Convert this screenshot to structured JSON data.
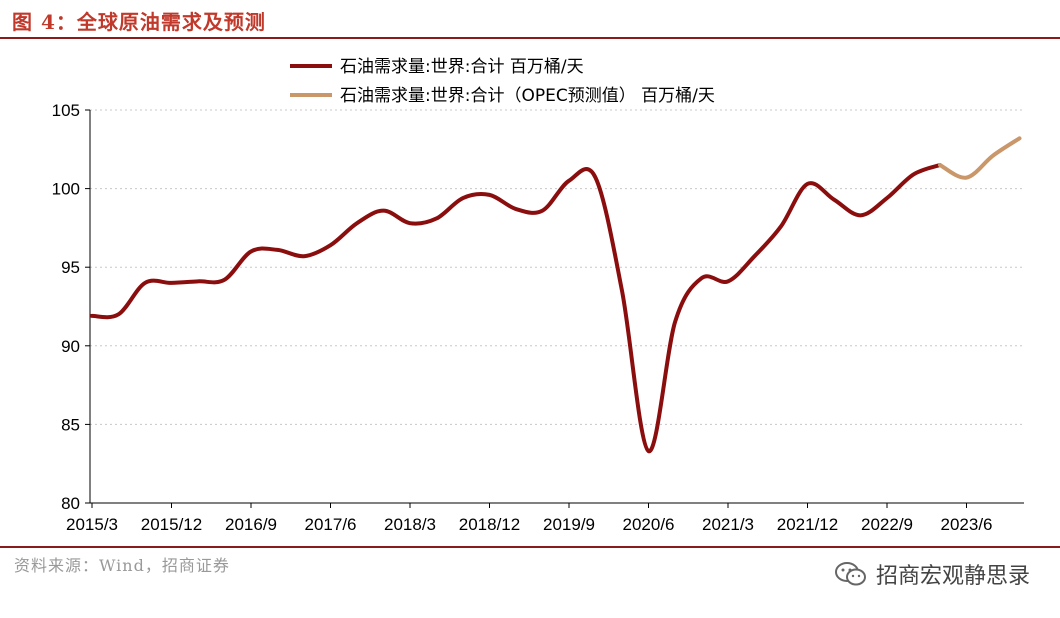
{
  "figure": {
    "title": "图 4：全球原油需求及预测",
    "source": "资料来源：Wind，招商证券",
    "watermark": "招商宏观静思录"
  },
  "colors": {
    "title": "#c0392b",
    "rule": "#8b1a1a",
    "actual_series": "#8b0e0e",
    "forecast_series": "#c9976a",
    "grid": "#c8c8c8"
  },
  "chart_data": {
    "type": "line",
    "title": "",
    "xlabel": "",
    "ylabel": "",
    "ylim": [
      80,
      105
    ],
    "yticks": [
      80,
      85,
      90,
      95,
      100,
      105
    ],
    "xticks": [
      "2015/3",
      "2015/12",
      "2016/9",
      "2017/6",
      "2018/3",
      "2018/12",
      "2019/9",
      "2020/6",
      "2021/3",
      "2021/12",
      "2022/9",
      "2023/6"
    ],
    "grid": "horizontal dotted",
    "legend": "top",
    "series": [
      {
        "name": "石油需求量:世界:合计 百万桶/天",
        "x": [
          "2015/3",
          "2015/6",
          "2015/9",
          "2015/12",
          "2016/3",
          "2016/6",
          "2016/9",
          "2016/12",
          "2017/3",
          "2017/6",
          "2017/9",
          "2017/12",
          "2018/3",
          "2018/6",
          "2018/9",
          "2018/12",
          "2019/3",
          "2019/6",
          "2019/9",
          "2019/12",
          "2020/3",
          "2020/6",
          "2020/9",
          "2020/12",
          "2021/3",
          "2021/6",
          "2021/9",
          "2021/12",
          "2022/3",
          "2022/6",
          "2022/9",
          "2022/12",
          "2023/3"
        ],
        "values": [
          91.9,
          92.0,
          94.0,
          94.0,
          94.1,
          94.2,
          96.0,
          96.1,
          95.7,
          96.4,
          97.8,
          98.6,
          97.8,
          98.1,
          99.4,
          99.6,
          98.7,
          98.6,
          100.5,
          100.7,
          93.5,
          83.3,
          91.5,
          94.3,
          94.1,
          95.7,
          97.6,
          100.3,
          99.3,
          98.3,
          99.4,
          100.9,
          101.5
        ]
      },
      {
        "name": "石油需求量:世界:合计（OPEC预测值） 百万桶/天",
        "x": [
          "2023/3",
          "2023/6",
          "2023/9",
          "2023/12"
        ],
        "values": [
          101.5,
          100.7,
          102.1,
          103.2
        ]
      }
    ]
  }
}
